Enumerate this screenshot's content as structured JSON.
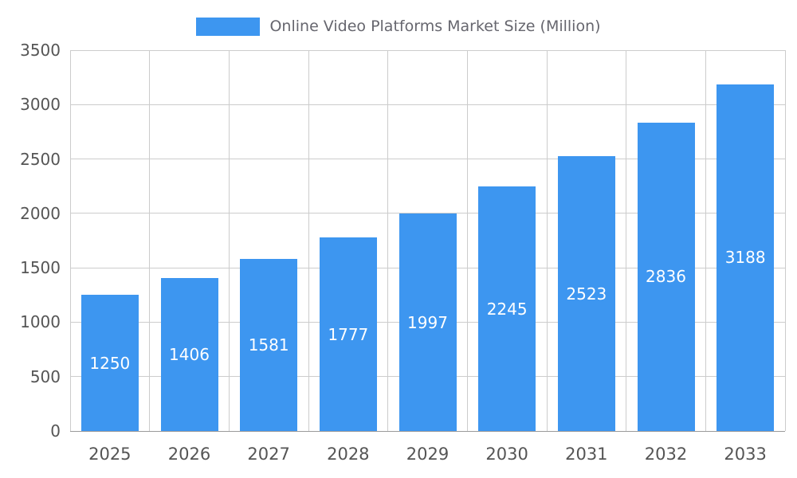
{
  "legend": {
    "label": "Online Video Platforms Market Size (Million)"
  },
  "chart_data": {
    "type": "bar",
    "title": "Online Video Platforms Market Size (Million)",
    "categories": [
      "2025",
      "2026",
      "2027",
      "2028",
      "2029",
      "2030",
      "2031",
      "2032",
      "2033"
    ],
    "values": [
      1250,
      1406,
      1581,
      1777,
      1997,
      2245,
      2523,
      2836,
      3188
    ],
    "xlabel": "",
    "ylabel": "",
    "ylim": [
      0,
      3500
    ],
    "yticks": [
      0,
      500,
      1000,
      1500,
      2000,
      2500,
      3000,
      3500
    ],
    "grid": true,
    "legend_position": "top",
    "value_labels": "inside-center",
    "bar_color": "#3D96F0",
    "value_label_color": "#ffffff",
    "axis_text_color": "#555555",
    "grid_color": "#cccccc",
    "axis_line_color": "#9a9a9a"
  }
}
